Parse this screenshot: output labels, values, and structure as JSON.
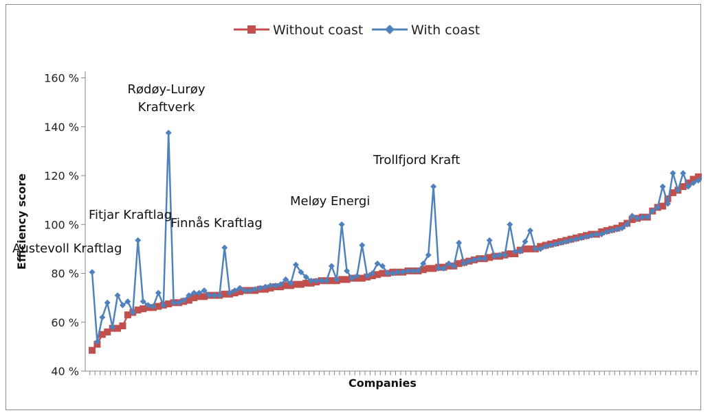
{
  "chart_data": {
    "type": "line",
    "xlabel": "Companies",
    "ylabel": "Efficiency score",
    "ylim": [
      40,
      160
    ],
    "yticks": [
      40,
      60,
      80,
      100,
      120,
      140,
      160
    ],
    "ytick_suffix": " %",
    "grid": false,
    "legend_position": "top",
    "series": [
      {
        "name": "Without coast",
        "color": "#c0504d",
        "marker": "square",
        "values": [
          48.5,
          51,
          55,
          56,
          57.5,
          57.5,
          58.5,
          63,
          64,
          65,
          65.5,
          66,
          66,
          66.5,
          67,
          67.5,
          68,
          68,
          68.5,
          69,
          70,
          70.5,
          70.5,
          71,
          71,
          71,
          71.5,
          71.5,
          72,
          72.5,
          73,
          73,
          73,
          73.5,
          73.5,
          74,
          74.5,
          74.5,
          75,
          75,
          75.5,
          75.5,
          76,
          76,
          76.5,
          77,
          77,
          77,
          77,
          77.5,
          77.5,
          78,
          78,
          78,
          78.5,
          79,
          79.5,
          80,
          80,
          80.5,
          80.5,
          80.5,
          81,
          81,
          81,
          81.5,
          82,
          82,
          82.5,
          82.5,
          83,
          83,
          84,
          84.5,
          85,
          85.5,
          86,
          86,
          86.5,
          87,
          87,
          87.5,
          88,
          88,
          89.5,
          90,
          90,
          90,
          91,
          91.5,
          92,
          92.5,
          93,
          93.5,
          94,
          94.5,
          95,
          95.5,
          96,
          96,
          97,
          97.5,
          98,
          98.5,
          99.5,
          100.5,
          102,
          102.5,
          103,
          103,
          105.5,
          107,
          107.5,
          110.5,
          113,
          114,
          115.5,
          117,
          118.5,
          119.5
        ]
      },
      {
        "name": "With coast",
        "color": "#4f81bd",
        "marker": "diamond",
        "values": [
          80.5,
          52,
          62,
          68,
          58,
          71,
          67,
          68.5,
          64,
          93.5,
          68.5,
          67,
          66.5,
          72,
          67,
          137.5,
          68,
          68,
          69,
          71,
          72,
          72,
          73,
          71,
          71,
          71,
          90.5,
          72,
          73,
          74,
          73,
          73,
          73.5,
          74,
          74.5,
          75,
          75,
          75.5,
          77.5,
          76,
          83.5,
          80.5,
          78.5,
          77,
          77,
          77,
          77,
          83,
          77.5,
          100,
          81,
          78,
          79,
          91.5,
          79,
          80,
          84,
          83,
          80,
          80,
          80.5,
          80.5,
          81,
          81,
          81,
          84,
          87.5,
          115.5,
          82,
          82,
          84,
          83,
          92.5,
          84,
          85,
          85.5,
          86,
          86,
          93.5,
          87,
          87.5,
          87.5,
          100,
          89,
          89,
          93,
          97.5,
          90,
          90,
          91,
          91.5,
          92,
          92.5,
          93,
          93.5,
          94,
          94.5,
          95,
          95.5,
          96,
          96,
          97,
          97.5,
          98,
          98.5,
          100,
          103.5,
          102.5,
          103,
          103,
          105.5,
          107,
          115.5,
          108.5,
          121,
          114,
          121,
          115.5,
          117,
          118,
          119.5
        ]
      }
    ],
    "annotations": [
      {
        "text": "Austevoll Kraftlag",
        "index": 0
      },
      {
        "text": "Fitjar Kraftlag",
        "index": 9
      },
      {
        "text": "Rødøy-Lurøy",
        "index": 15
      },
      {
        "text": "Kraftverk",
        "index": 15
      },
      {
        "text": "Finnås Kraftlag",
        "index": 26
      },
      {
        "text": "Meløy Energi",
        "index": 49
      },
      {
        "text": "Trollfjord Kraft",
        "index": 67
      }
    ]
  }
}
